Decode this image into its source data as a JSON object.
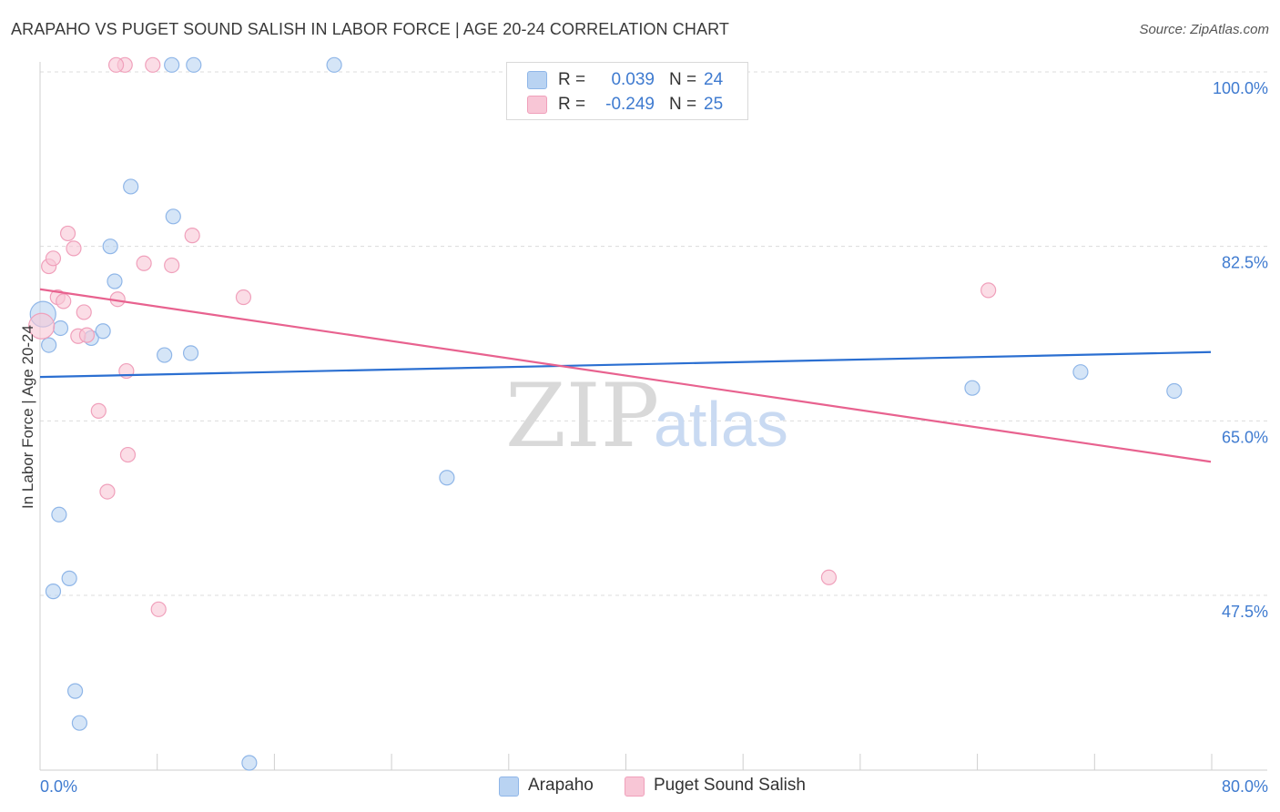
{
  "title": "ARAPAHO VS PUGET SOUND SALISH IN LABOR FORCE | AGE 20-24 CORRELATION CHART",
  "source": "Source: ZipAtlas.com",
  "watermark": {
    "zip": "ZIP",
    "atlas": "atlas"
  },
  "colors": {
    "arapaho_fill": "#b9d3f2",
    "arapaho_stroke": "#8fb6e8",
    "arapaho_line": "#2b6fd1",
    "puget_fill": "#f8c6d6",
    "puget_stroke": "#f0a0bb",
    "puget_line": "#e8628f",
    "tick": "#3f7bd0",
    "grid": "#dcdcdc"
  },
  "legend": {
    "rows": [
      {
        "r_label": "R =",
        "r_value": "0.039",
        "n_label": "N =",
        "n_value": "24"
      },
      {
        "r_label": "R =",
        "r_value": "-0.249",
        "n_label": "N =",
        "n_value": "25"
      }
    ]
  },
  "bottom_legend": {
    "series1": "Arapaho",
    "series2": "Puget Sound Salish"
  },
  "chart_data": {
    "type": "scatter",
    "xlabel": "",
    "ylabel": "In Labor Force | Age 20-24",
    "xlim": [
      0,
      80
    ],
    "ylim": [
      30,
      102
    ],
    "x_tick_labels": [
      "0.0%",
      "80.0%"
    ],
    "y_ticks": [
      {
        "value": 100,
        "label": "100.0%"
      },
      {
        "value": 82.5,
        "label": "82.5%"
      },
      {
        "value": 65,
        "label": "65.0%"
      },
      {
        "value": 47.5,
        "label": "47.5%"
      }
    ],
    "series": [
      {
        "name": "Arapaho",
        "points": [
          [
            0.2,
            75.7
          ],
          [
            0.6,
            72.6
          ],
          [
            1.4,
            74.3
          ],
          [
            3.5,
            73.3
          ],
          [
            4.3,
            74.0
          ],
          [
            4.8,
            82.5
          ],
          [
            5.1,
            79.0
          ],
          [
            6.2,
            88.5
          ],
          [
            8.5,
            71.6
          ],
          [
            9.1,
            85.5
          ],
          [
            10.3,
            71.8
          ],
          [
            9.0,
            100.7
          ],
          [
            10.5,
            100.7
          ],
          [
            20.1,
            100.7
          ],
          [
            1.3,
            55.6
          ],
          [
            0.9,
            47.9
          ],
          [
            2.0,
            49.2
          ],
          [
            2.4,
            37.9
          ],
          [
            2.7,
            34.7
          ],
          [
            14.3,
            30.7
          ],
          [
            27.8,
            59.3
          ],
          [
            63.7,
            68.3
          ],
          [
            71.1,
            69.9
          ],
          [
            77.5,
            68.0
          ]
        ],
        "trend": [
          [
            0,
            69.4
          ],
          [
            80,
            71.9
          ]
        ]
      },
      {
        "name": "Puget Sound Salish",
        "points": [
          [
            0.1,
            74.5
          ],
          [
            0.6,
            80.5
          ],
          [
            0.9,
            81.3
          ],
          [
            1.2,
            77.4
          ],
          [
            1.6,
            77.0
          ],
          [
            1.9,
            83.8
          ],
          [
            2.3,
            82.3
          ],
          [
            2.6,
            73.5
          ],
          [
            3.0,
            75.9
          ],
          [
            3.2,
            73.6
          ],
          [
            5.3,
            77.2
          ],
          [
            5.9,
            70.0
          ],
          [
            7.1,
            80.8
          ],
          [
            9.0,
            80.6
          ],
          [
            10.4,
            83.6
          ],
          [
            13.9,
            77.4
          ],
          [
            4.0,
            66.0
          ],
          [
            6.0,
            61.6
          ],
          [
            4.6,
            57.9
          ],
          [
            8.1,
            46.1
          ],
          [
            5.8,
            100.7
          ],
          [
            5.2,
            100.7
          ],
          [
            7.7,
            100.7
          ],
          [
            53.9,
            49.3
          ],
          [
            64.8,
            78.1
          ]
        ],
        "trend": [
          [
            0,
            78.2
          ],
          [
            80,
            60.9
          ]
        ]
      }
    ]
  }
}
